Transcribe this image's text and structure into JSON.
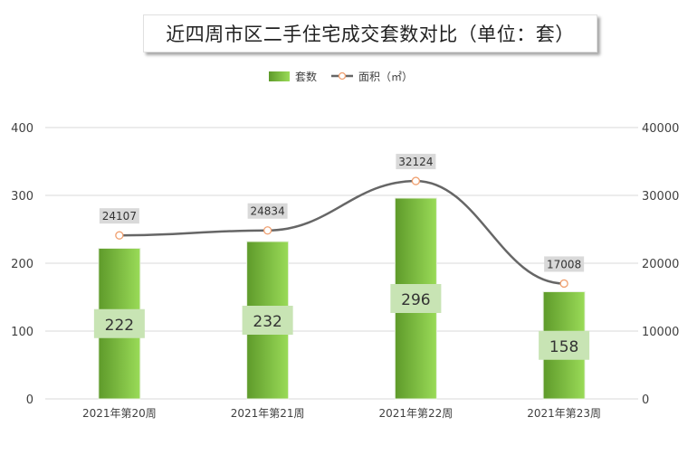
{
  "chart_data": {
    "type": "bar",
    "title": "近四周市区二手住宅成交套数对比（单位：套）",
    "categories": [
      "2021年第20周",
      "2021年第21周",
      "2021年第22周",
      "2021年第23周"
    ],
    "series": [
      {
        "name": "套数",
        "type": "bar",
        "axis": "left",
        "values": [
          222,
          232,
          296,
          158
        ]
      },
      {
        "name": "面积（㎡）",
        "type": "line",
        "axis": "right",
        "values": [
          24107,
          24834,
          32124,
          17008
        ]
      }
    ],
    "y_left": {
      "min": 0,
      "max": 400,
      "ticks": [
        0,
        100,
        200,
        300,
        400
      ]
    },
    "y_right": {
      "min": 0,
      "max": 40000,
      "ticks": [
        0,
        10000,
        20000,
        30000,
        40000
      ]
    },
    "grid": true,
    "legend_position": "top-center",
    "colors": {
      "bar_dark": "#5e9a2a",
      "bar_light": "#9adb58",
      "bar_label_bg": "#c8e4b4",
      "line": "#666666",
      "marker_stroke": "#f0a070",
      "point_label_bg": "#d9d9d9",
      "grid": "#d9d9d9",
      "text": "#404040"
    }
  }
}
